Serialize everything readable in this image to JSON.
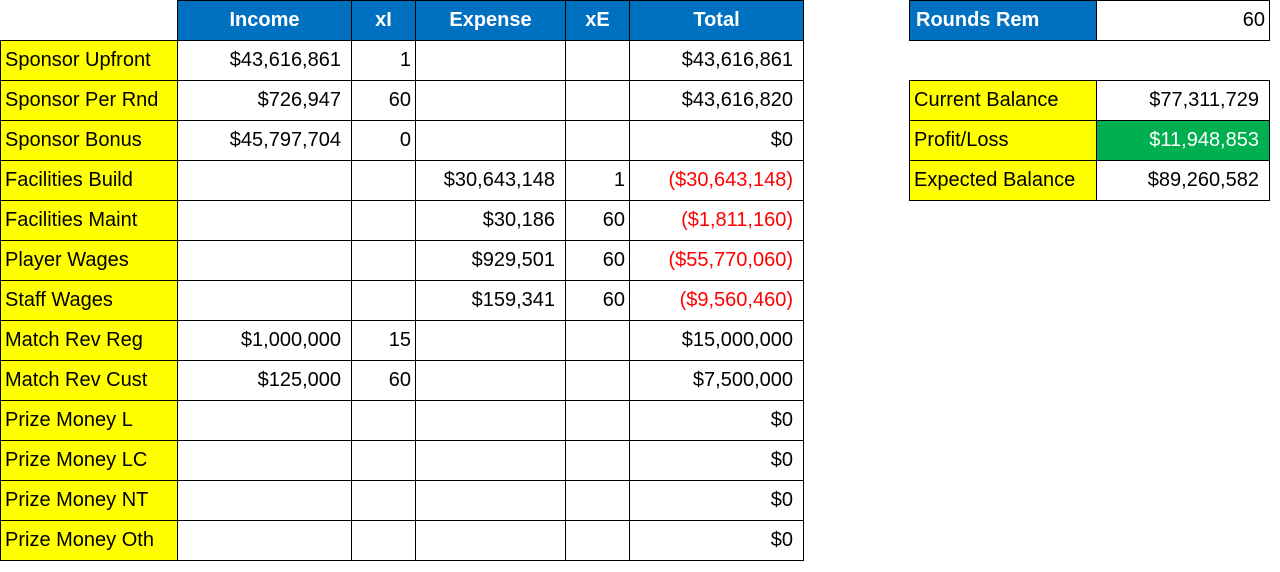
{
  "main_table": {
    "headers": [
      "",
      "Income",
      "xI",
      "Expense",
      "xE",
      "Total"
    ],
    "rows": [
      {
        "label": "Sponsor Upfront",
        "income": "$43,616,861",
        "xi": "1",
        "expense": "",
        "xe": "",
        "total": "$43,616,861",
        "negative": false
      },
      {
        "label": "Sponsor Per Rnd",
        "income": "$726,947",
        "xi": "60",
        "expense": "",
        "xe": "",
        "total": "$43,616,820",
        "negative": false
      },
      {
        "label": "Sponsor Bonus",
        "income": "$45,797,704",
        "xi": "0",
        "expense": "",
        "xe": "",
        "total": "$0",
        "negative": false
      },
      {
        "label": "Facilities Build",
        "income": "",
        "xi": "",
        "expense": "$30,643,148",
        "xe": "1",
        "total": "($30,643,148)",
        "negative": true
      },
      {
        "label": "Facilities Maint",
        "income": "",
        "xi": "",
        "expense": "$30,186",
        "xe": "60",
        "total": "($1,811,160)",
        "negative": true
      },
      {
        "label": "Player Wages",
        "income": "",
        "xi": "",
        "expense": "$929,501",
        "xe": "60",
        "total": "($55,770,060)",
        "negative": true
      },
      {
        "label": "Staff Wages",
        "income": "",
        "xi": "",
        "expense": "$159,341",
        "xe": "60",
        "total": "($9,560,460)",
        "negative": true
      },
      {
        "label": "Match Rev Reg",
        "income": "$1,000,000",
        "xi": "15",
        "expense": "",
        "xe": "",
        "total": "$15,000,000",
        "negative": false
      },
      {
        "label": "Match Rev Cust",
        "income": "$125,000",
        "xi": "60",
        "expense": "",
        "xe": "",
        "total": "$7,500,000",
        "negative": false
      },
      {
        "label": "Prize Money L",
        "income": "",
        "xi": "",
        "expense": "",
        "xe": "",
        "total": "$0",
        "negative": false
      },
      {
        "label": "Prize Money LC",
        "income": "",
        "xi": "",
        "expense": "",
        "xe": "",
        "total": "$0",
        "negative": false
      },
      {
        "label": "Prize Money NT",
        "income": "",
        "xi": "",
        "expense": "",
        "xe": "",
        "total": "$0",
        "negative": false
      },
      {
        "label": "Prize Money Oth",
        "income": "",
        "xi": "",
        "expense": "",
        "xe": "",
        "total": "$0",
        "negative": false
      }
    ]
  },
  "rounds": {
    "label": "Rounds Rem",
    "value": "60"
  },
  "summary": {
    "current_balance": {
      "label": "Current Balance",
      "value": "$77,311,729"
    },
    "profit_loss": {
      "label": "Profit/Loss",
      "value": "$11,948,853"
    },
    "expected_balance": {
      "label": "Expected Balance",
      "value": "$89,260,582"
    }
  },
  "colors": {
    "header_blue": "#0070c0",
    "label_yellow": "#ffff00",
    "negative_red": "#ff0000",
    "profit_green": "#00b050"
  }
}
